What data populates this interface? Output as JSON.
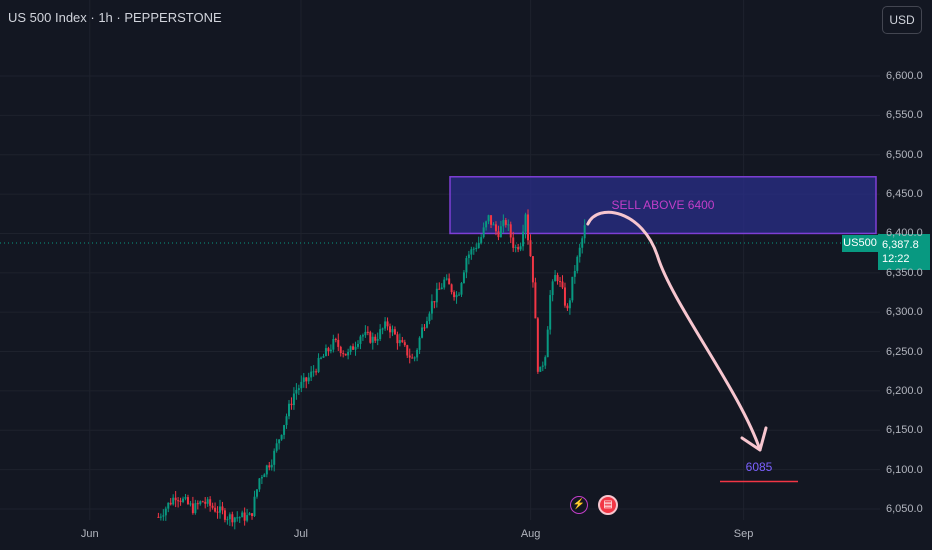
{
  "header": {
    "symbol_title": "US 500 Index · 1h · PEPPERSTONE",
    "currency": "USD"
  },
  "price_tag": {
    "symbol": "US500",
    "price": "6,387.8",
    "countdown": "12:22"
  },
  "annotations": {
    "zone_label": "SELL ABOVE 6400",
    "zone_low": 6400,
    "zone_high": 6472,
    "target_label": "6085",
    "target_value": 6085
  },
  "colors": {
    "background": "#131722",
    "up": "#089981",
    "down": "#f23645",
    "zone_fill": "#2a2f8a",
    "zone_border": "#7e3fd6",
    "arrow": "#f7c6cf",
    "target_line": "#f23645"
  },
  "chart_data": {
    "type": "candlestick",
    "xlabel": "",
    "ylabel": "",
    "ylim": [
      6040,
      6660
    ],
    "y_ticks": [
      "6,050.0",
      "6,100.0",
      "6,150.0",
      "6,200.0",
      "6,250.0",
      "6,300.0",
      "6,350.0",
      "6,400.0",
      "6,450.0",
      "6,500.0",
      "6,550.0",
      "6,600.0"
    ],
    "x_ticks": [
      "Jun",
      "Jul",
      "Aug",
      "Sep"
    ],
    "last_price": 6387.8,
    "path_points": [
      [
        0.18,
        6040
      ],
      [
        0.2,
        6068
      ],
      [
        0.22,
        6050
      ],
      [
        0.23,
        6060
      ],
      [
        0.26,
        6040
      ],
      [
        0.285,
        6040
      ],
      [
        0.295,
        6090
      ],
      [
        0.31,
        6115
      ],
      [
        0.32,
        6150
      ],
      [
        0.335,
        6200
      ],
      [
        0.35,
        6215
      ],
      [
        0.365,
        6240
      ],
      [
        0.38,
        6262
      ],
      [
        0.395,
        6245
      ],
      [
        0.41,
        6272
      ],
      [
        0.425,
        6265
      ],
      [
        0.44,
        6285
      ],
      [
        0.455,
        6260
      ],
      [
        0.47,
        6238
      ],
      [
        0.48,
        6280
      ],
      [
        0.49,
        6310
      ],
      [
        0.505,
        6340
      ],
      [
        0.52,
        6320
      ],
      [
        0.53,
        6370
      ],
      [
        0.545,
        6390
      ],
      [
        0.555,
        6420
      ],
      [
        0.565,
        6400
      ],
      [
        0.575,
        6415
      ],
      [
        0.585,
        6380
      ],
      [
        0.592,
        6390
      ],
      [
        0.597,
        6430
      ],
      [
        0.6,
        6395
      ],
      [
        0.605,
        6355
      ],
      [
        0.612,
        6215
      ],
      [
        0.62,
        6250
      ],
      [
        0.625,
        6320
      ],
      [
        0.632,
        6350
      ],
      [
        0.638,
        6330
      ],
      [
        0.645,
        6300
      ],
      [
        0.652,
        6350
      ],
      [
        0.658,
        6375
      ],
      [
        0.665,
        6410
      ]
    ]
  }
}
